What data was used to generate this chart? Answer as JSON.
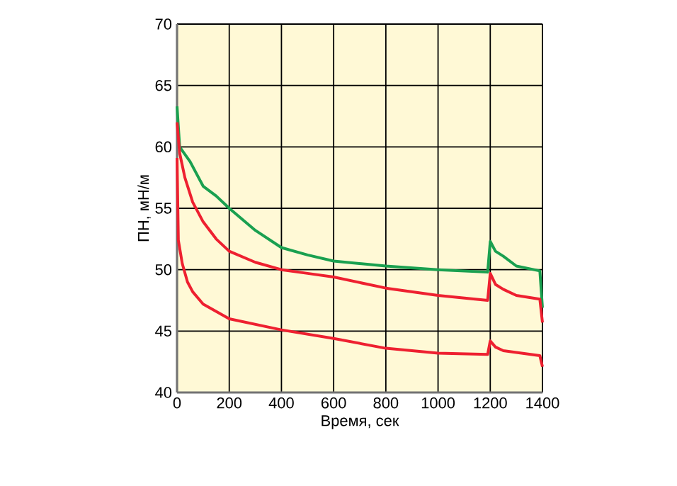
{
  "chart_data": {
    "type": "line",
    "xlabel": "Время, сек",
    "ylabel": "ПН, мН/м",
    "xlim": [
      0,
      1400
    ],
    "ylim": [
      40,
      70
    ],
    "xticks": [
      0,
      200,
      400,
      600,
      800,
      1000,
      1200,
      1400
    ],
    "yticks": [
      40,
      45,
      50,
      55,
      60,
      65,
      70
    ],
    "grid": true,
    "series": [
      {
        "color": "#1aa050",
        "x": [
          0,
          10,
          50,
          100,
          150,
          200,
          300,
          400,
          500,
          600,
          800,
          1000,
          1190,
          1200,
          1220,
          1250,
          1300,
          1390,
          1400
        ],
        "values": [
          63.3,
          60,
          58.8,
          56.8,
          56,
          55,
          53.2,
          51.8,
          51.2,
          50.7,
          50.3,
          50,
          49.8,
          52.3,
          51.5,
          51.1,
          50.3,
          49.9,
          46.9
        ]
      },
      {
        "color": "#ee2030",
        "x": [
          0,
          10,
          30,
          60,
          100,
          150,
          200,
          300,
          400,
          500,
          600,
          800,
          1000,
          1190,
          1200,
          1220,
          1250,
          1300,
          1390,
          1400
        ],
        "values": [
          62,
          59.5,
          57.5,
          55.5,
          53.9,
          52.5,
          51.5,
          50.6,
          50,
          49.7,
          49.4,
          48.5,
          47.9,
          47.5,
          49.7,
          48.8,
          48.4,
          47.9,
          47.6,
          45.7
        ]
      },
      {
        "color": "#ee2030",
        "x": [
          0,
          5,
          20,
          40,
          60,
          100,
          200,
          400,
          600,
          800,
          1000,
          1190,
          1200,
          1220,
          1250,
          1390,
          1400
        ],
        "values": [
          59.1,
          52.4,
          50.5,
          49,
          48.2,
          47.2,
          46,
          45.1,
          44.4,
          43.6,
          43.2,
          43.1,
          44.2,
          43.7,
          43.4,
          43,
          42.1
        ]
      }
    ]
  }
}
